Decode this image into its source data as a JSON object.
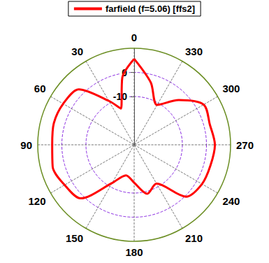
{
  "chart_data": {
    "type": "polar",
    "x": [
      0,
      10,
      20,
      30,
      45,
      60,
      75,
      90,
      105,
      120,
      135,
      150,
      165,
      180,
      195,
      210,
      225,
      240,
      255,
      270,
      285,
      300,
      315,
      330,
      345,
      360
    ],
    "series": [
      {
        "name": "farfield (f=5.06) [ffs2]",
        "color": "#ff0000",
        "values": [
          5.6,
          -1.7,
          -14,
          -9,
          2.5,
          4,
          4.5,
          4,
          5,
          3.3,
          1.4,
          -11.7,
          -16.9,
          -14.3,
          -9,
          -11.4,
          0.4,
          2.5,
          2.8,
          3.5,
          2.5,
          3.3,
          -3.8,
          -10.9,
          -3.3,
          5.6
        ]
      }
    ],
    "xlim": [
      0,
      360
    ],
    "xticks": [
      0,
      30,
      60,
      90,
      120,
      150,
      180,
      210,
      240,
      270,
      300,
      330
    ],
    "ylim": [
      -30,
      10
    ],
    "yticks": [
      -10,
      0
    ],
    "grid": true,
    "legend": "top"
  }
}
